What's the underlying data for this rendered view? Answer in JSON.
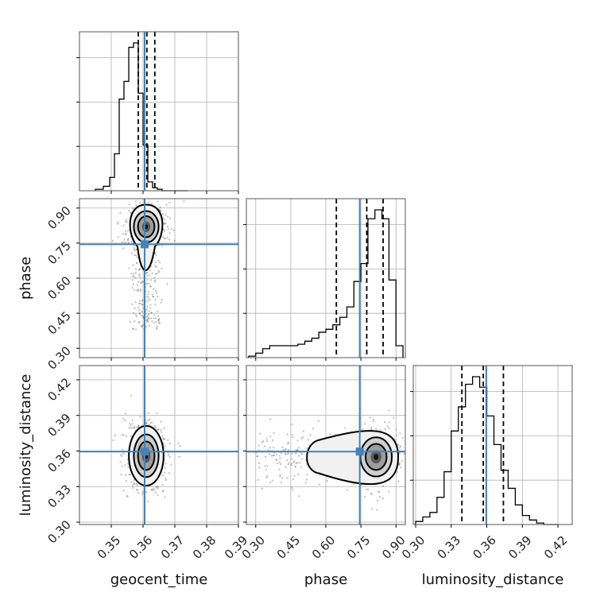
{
  "chart_data": {
    "type": "corner",
    "parameters": [
      "geocent_time",
      "phase",
      "luminosity_distance"
    ],
    "truth": {
      "geocent_time": 0.3605,
      "phase": 0.745,
      "luminosity_distance": 0.3595
    },
    "grid": true,
    "colors": {
      "truth": "#4682b4",
      "hist": "#000000",
      "contour": "#000000",
      "points": "#6e6e6e",
      "grid": "#b0b0b0"
    },
    "axes": {
      "geocent_time": {
        "range": [
          0.34,
          0.39
        ],
        "ticks": [
          0.35,
          0.36,
          0.37,
          0.38,
          0.39
        ],
        "tick_labels": [
          "0.35",
          "0.36",
          "0.37",
          "0.38",
          "0.39"
        ]
      },
      "phase": {
        "range": [
          0.26,
          0.94
        ],
        "ticks": [
          0.3,
          0.45,
          0.6,
          0.75,
          0.9
        ],
        "tick_labels": [
          "0.30",
          "0.45",
          "0.60",
          "0.75",
          "0.90"
        ]
      },
      "luminosity_distance": {
        "range": [
          0.298,
          0.432
        ],
        "ticks": [
          0.3,
          0.33,
          0.36,
          0.39,
          0.42
        ],
        "tick_labels": [
          "0.30",
          "0.33",
          "0.36",
          "0.39",
          "0.42"
        ]
      }
    },
    "histograms": {
      "geocent_time": {
        "edges": [
          0.345,
          0.3475,
          0.3495,
          0.351,
          0.3525,
          0.354,
          0.3555,
          0.357,
          0.3585,
          0.36,
          0.3615,
          0.363,
          0.3645,
          0.366,
          0.3675,
          0.369,
          0.3705,
          0.372,
          0.374
        ],
        "counts": [
          0.01,
          0.03,
          0.09,
          0.25,
          0.62,
          0.74,
          0.97,
          1.0,
          0.66,
          0.31,
          0.06,
          0.02,
          0.01,
          0.0,
          0.0,
          0.0,
          0.0,
          0.0
        ],
        "quantiles": [
          0.3585,
          0.3612,
          0.3637
        ]
      },
      "phase": {
        "edges": [
          0.27,
          0.3,
          0.33,
          0.36,
          0.39,
          0.42,
          0.45,
          0.48,
          0.51,
          0.54,
          0.57,
          0.6,
          0.63,
          0.66,
          0.69,
          0.72,
          0.75,
          0.78,
          0.81,
          0.84,
          0.87,
          0.9,
          0.93
        ],
        "counts": [
          0.01,
          0.03,
          0.06,
          0.08,
          0.08,
          0.08,
          0.08,
          0.09,
          0.11,
          0.13,
          0.17,
          0.19,
          0.22,
          0.27,
          0.34,
          0.51,
          0.63,
          0.93,
          0.99,
          0.93,
          0.52,
          0.08
        ],
        "quantiles": [
          0.645,
          0.775,
          0.845
        ]
      },
      "luminosity_distance": {
        "edges": [
          0.3,
          0.306,
          0.312,
          0.318,
          0.324,
          0.33,
          0.336,
          0.342,
          0.348,
          0.354,
          0.36,
          0.366,
          0.372,
          0.378,
          0.384,
          0.39,
          0.396,
          0.402,
          0.408,
          0.414,
          0.42
        ],
        "counts": [
          0.02,
          0.05,
          0.08,
          0.18,
          0.35,
          0.62,
          0.78,
          0.93,
          0.98,
          0.91,
          0.72,
          0.53,
          0.36,
          0.24,
          0.13,
          0.06,
          0.03,
          0.01,
          0.0,
          0.0
        ],
        "quantiles": [
          0.339,
          0.357,
          0.374
        ]
      }
    },
    "pair_density": {
      "phase|geocent_time": {
        "core": {
          "geocent_time": 0.361,
          "phase": 0.82
        },
        "spread": {
          "geocent_time": 0.0026,
          "phase": 0.045
        },
        "tail_phase_min": 0.38
      },
      "luminosity_distance|geocent_time": {
        "core": {
          "geocent_time": 0.361,
          "luminosity_distance": 0.356
        },
        "spread": {
          "geocent_time": 0.0026,
          "luminosity_distance": 0.012
        }
      },
      "luminosity_distance|phase": {
        "core": {
          "phase": 0.815,
          "luminosity_distance": 0.355
        },
        "spread": {
          "phase": 0.045,
          "luminosity_distance": 0.011
        },
        "tail_phase_min": 0.3
      }
    }
  }
}
